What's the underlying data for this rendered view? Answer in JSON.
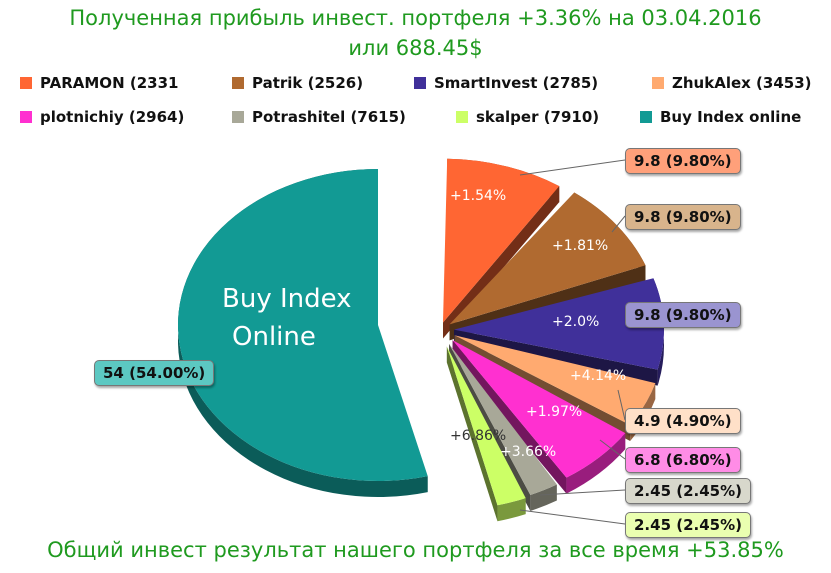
{
  "title_line1": "Полученная  прибыль инвест. портфеля +3.36% на 03.04.2016",
  "title_line2": "или 688.45$",
  "footer": "Общий инвест результат нашего портфеля за все время +53.85%",
  "colors": {
    "title": "#1f9a1f",
    "paramon": "#ff6633",
    "patrik": "#b06a30",
    "smartinvest": "#40309a",
    "zhukalex": "#ffaa70",
    "plotnichiy": "#ff30d0",
    "potrashitel": "#a8a898",
    "skalper": "#ccff66",
    "buyindex": "#129a94"
  },
  "chart_data": {
    "type": "pie",
    "legend": [
      {
        "label": "PARAMON (2331",
        "color": "#ff6633"
      },
      {
        "label": "Patrik (2526)",
        "color": "#b06a30"
      },
      {
        "label": "SmartInvest (2785)",
        "color": "#40309a"
      },
      {
        "label": "ZhukAlex (3453)",
        "color": "#ffaa70"
      },
      {
        "label": "plotnichiy (2964)",
        "color": "#ff30d0"
      },
      {
        "label": "Potrashitel (7615)",
        "color": "#a8a898"
      },
      {
        "label": "skalper (7910)",
        "color": "#ccff66"
      },
      {
        "label": "Buy Index online",
        "color": "#129a94"
      }
    ],
    "slices": [
      {
        "name": "PARAMON (2331",
        "value": 9.8,
        "value_label": "9.8 (9.80%)",
        "profit_label": "+1.54%",
        "color": "#ff6633",
        "box_color": "#ffa07a"
      },
      {
        "name": "Patrik (2526)",
        "value": 9.8,
        "value_label": "9.8 (9.80%)",
        "profit_label": "+1.81%",
        "color": "#b06a30",
        "box_color": "#d8b48c"
      },
      {
        "name": "SmartInvest (2785)",
        "value": 9.8,
        "value_label": "9.8 (9.80%)",
        "profit_label": "+2.0%",
        "color": "#40309a",
        "box_color": "#9a94d0"
      },
      {
        "name": "ZhukAlex (3453)",
        "value": 4.9,
        "value_label": "4.9 (4.90%)",
        "profit_label": "+4.14%",
        "color": "#ffaa70",
        "box_color": "#ffe0c8"
      },
      {
        "name": "plotnichiy (2964)",
        "value": 6.8,
        "value_label": "6.8 (6.80%)",
        "profit_label": "+1.97%",
        "color": "#ff30d0",
        "box_color": "#ff8ce6"
      },
      {
        "name": "Potrashitel (7615)",
        "value": 2.45,
        "value_label": "2.45 (2.45%)",
        "profit_label": "+3.66%",
        "color": "#a8a898",
        "box_color": "#d8d8cc"
      },
      {
        "name": "skalper (7910)",
        "value": 2.45,
        "value_label": "2.45 (2.45%)",
        "profit_label": "+6.86%",
        "color": "#ccff66",
        "box_color": "#eaffb0"
      },
      {
        "name": "Buy Index online",
        "value": 54,
        "value_label": "54 (54.00%)",
        "profit_label": "Buy Index Online",
        "color": "#129a94",
        "box_color": "#5cc8c2"
      }
    ]
  }
}
